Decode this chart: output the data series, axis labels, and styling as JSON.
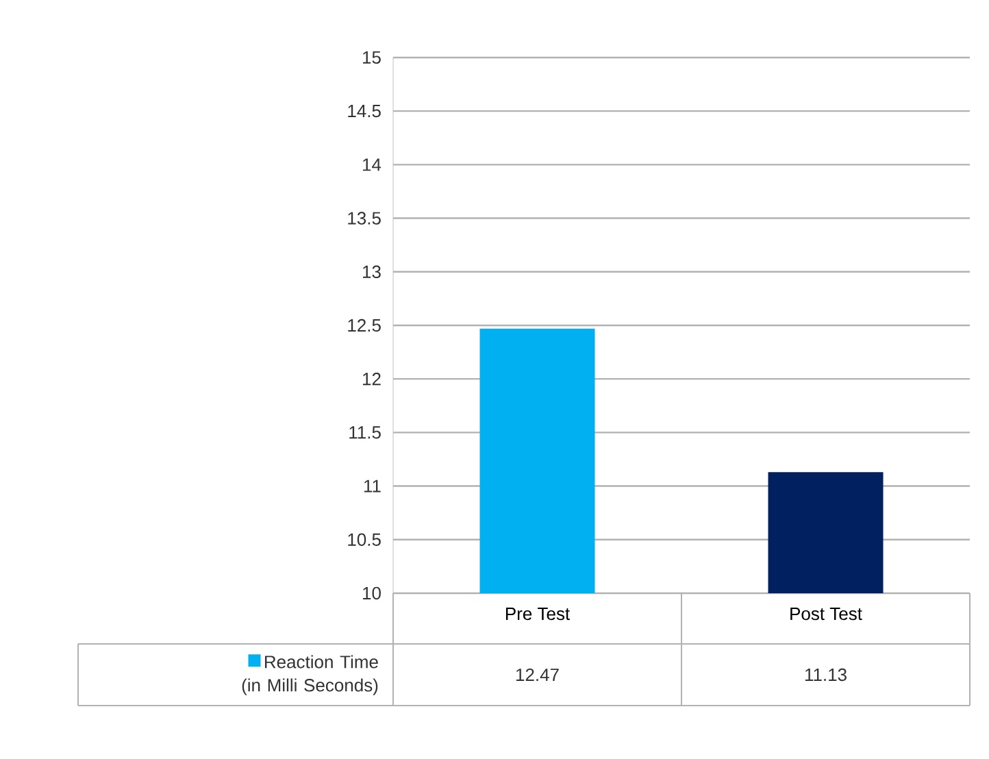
{
  "chart_data": {
    "type": "bar",
    "categories": [
      "Pre Test",
      "Post Test"
    ],
    "series": [
      {
        "name": "Reaction Time (in Milli Seconds)",
        "colors": [
          "#00b0f0",
          "#002060"
        ],
        "values": [
          12.47,
          11.13
        ]
      }
    ],
    "ylim": [
      10,
      15
    ],
    "yticks": [
      10,
      10.5,
      11,
      11.5,
      12,
      12.5,
      13,
      13.5,
      14,
      14.5,
      15
    ],
    "grid": "y",
    "data_labels": true,
    "legend": "bottom left"
  }
}
